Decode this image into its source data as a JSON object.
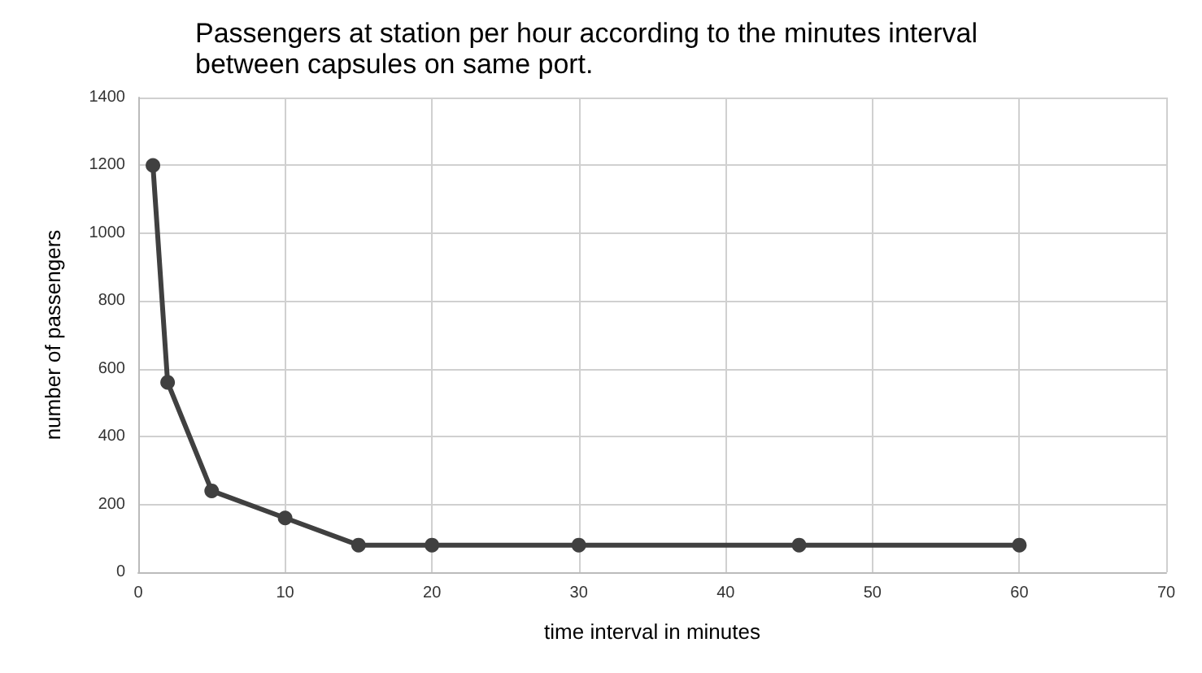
{
  "chart_data": {
    "type": "line",
    "title": "Passengers at station per hour according to the minutes interval between capsules on same port.",
    "xlabel": "time interval in minutes",
    "ylabel": "number of passengers",
    "x": [
      1,
      2,
      5,
      10,
      15,
      20,
      30,
      45,
      60
    ],
    "series": [
      {
        "color": "#404040",
        "values": [
          1200,
          560,
          240,
          160,
          80,
          80,
          80,
          80,
          80
        ]
      }
    ],
    "xlim": [
      0,
      70
    ],
    "xticks": [
      0,
      10,
      20,
      30,
      40,
      50,
      60,
      70
    ],
    "ylim": [
      0,
      1400
    ],
    "yticks": [
      0,
      200,
      400,
      600,
      800,
      1000,
      1200,
      1400
    ],
    "grid": true,
    "marker": "circle",
    "line_style": "solid"
  }
}
